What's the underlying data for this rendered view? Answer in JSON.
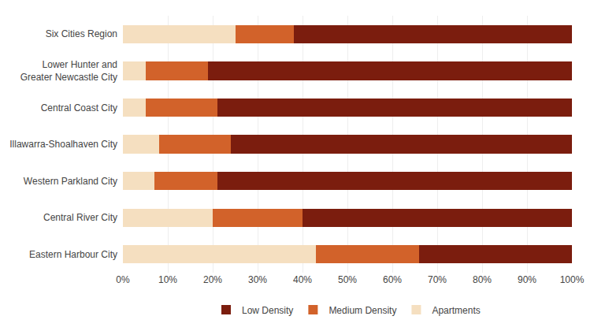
{
  "chart_data": {
    "type": "bar",
    "orientation": "horizontal",
    "stacked": true,
    "categories": [
      "Eastern Harbour City",
      "Central River City",
      "Western Parkland City",
      "Illawarra-Shoalhaven City",
      "Central Coast City",
      "Lower Hunter and\nGreater Newcastle City",
      "Six Cities Region"
    ],
    "series": [
      {
        "name": "Apartments",
        "color": "#f5dfc0",
        "values": [
          43,
          20,
          7,
          8,
          5,
          5,
          25
        ]
      },
      {
        "name": "Medium Density",
        "color": "#d2622a",
        "values": [
          23,
          20,
          14,
          16,
          16,
          14,
          13
        ]
      },
      {
        "name": "Low Density",
        "color": "#7b1d0e",
        "values": [
          34,
          60,
          79,
          76,
          79,
          81,
          62
        ]
      }
    ],
    "xlim": [
      0,
      100
    ],
    "xticks": [
      {
        "value": 0,
        "label": "0%"
      },
      {
        "value": 10,
        "label": "10%"
      },
      {
        "value": 20,
        "label": "20%"
      },
      {
        "value": 30,
        "label": "30%"
      },
      {
        "value": 40,
        "label": "40%"
      },
      {
        "value": 50,
        "label": "50%"
      },
      {
        "value": 60,
        "label": "60%"
      },
      {
        "value": 70,
        "label": "70%"
      },
      {
        "value": 80,
        "label": "80%"
      },
      {
        "value": 90,
        "label": "90%"
      },
      {
        "value": 100,
        "label": "100%"
      }
    ],
    "grid": true,
    "legend": "bottom"
  }
}
